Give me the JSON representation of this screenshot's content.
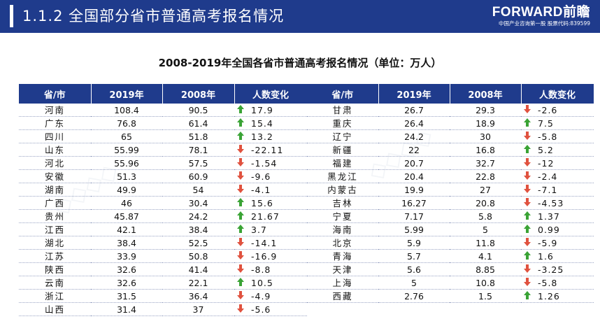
{
  "header": {
    "title": "1.1.2 全国部分省市普通高考报名情况",
    "logo_main": "FORWARD前瞻",
    "logo_sub": "中国产业咨询第一股 股票代码:839599"
  },
  "table_title": "2008-2019年全国各省市普通高考报名情况（单位：万人）",
  "columns": [
    "省/市",
    "2019年",
    "2008年",
    "人数变化"
  ],
  "colors": {
    "header_bg": "#1f3b8c",
    "up": "#3aa335",
    "down": "#e0523f"
  },
  "left_rows": [
    {
      "name": "河南",
      "y2019": "108.4",
      "y2008": "90.5",
      "change": "17.9",
      "dir": "up"
    },
    {
      "name": "广东",
      "y2019": "76.8",
      "y2008": "61.4",
      "change": "15.4",
      "dir": "up"
    },
    {
      "name": "四川",
      "y2019": "65",
      "y2008": "51.8",
      "change": "13.2",
      "dir": "up"
    },
    {
      "name": "山东",
      "y2019": "55.99",
      "y2008": "78.1",
      "change": "-22.11",
      "dir": "down"
    },
    {
      "name": "河北",
      "y2019": "55.96",
      "y2008": "57.5",
      "change": "-1.54",
      "dir": "down"
    },
    {
      "name": "安徽",
      "y2019": "51.3",
      "y2008": "60.9",
      "change": "-9.6",
      "dir": "down"
    },
    {
      "name": "湖南",
      "y2019": "49.9",
      "y2008": "54",
      "change": "-4.1",
      "dir": "down"
    },
    {
      "name": "广西",
      "y2019": "46",
      "y2008": "30.4",
      "change": "15.6",
      "dir": "up"
    },
    {
      "name": "贵州",
      "y2019": "45.87",
      "y2008": "24.2",
      "change": "21.67",
      "dir": "up"
    },
    {
      "name": "江西",
      "y2019": "42.1",
      "y2008": "38.4",
      "change": "3.7",
      "dir": "up"
    },
    {
      "name": "湖北",
      "y2019": "38.4",
      "y2008": "52.5",
      "change": "-14.1",
      "dir": "down"
    },
    {
      "name": "江苏",
      "y2019": "33.9",
      "y2008": "50.8",
      "change": "-16.9",
      "dir": "down"
    },
    {
      "name": "陕西",
      "y2019": "32.6",
      "y2008": "41.4",
      "change": "-8.8",
      "dir": "down"
    },
    {
      "name": "云南",
      "y2019": "32.6",
      "y2008": "22.1",
      "change": "10.5",
      "dir": "up"
    },
    {
      "name": "浙江",
      "y2019": "31.5",
      "y2008": "36.4",
      "change": "-4.9",
      "dir": "down"
    },
    {
      "name": "山西",
      "y2019": "31.4",
      "y2008": "37",
      "change": "-5.6",
      "dir": "down"
    }
  ],
  "right_rows": [
    {
      "name": "甘肃",
      "y2019": "26.7",
      "y2008": "29.3",
      "change": "-2.6",
      "dir": "down"
    },
    {
      "name": "重庆",
      "y2019": "26.4",
      "y2008": "18.9",
      "change": "7.5",
      "dir": "up"
    },
    {
      "name": "辽宁",
      "y2019": "24.2",
      "y2008": "30",
      "change": "-5.8",
      "dir": "down"
    },
    {
      "name": "新疆",
      "y2019": "22",
      "y2008": "16.8",
      "change": "5.2",
      "dir": "up"
    },
    {
      "name": "福建",
      "y2019": "20.7",
      "y2008": "32.7",
      "change": "-12",
      "dir": "down"
    },
    {
      "name": "黑龙江",
      "y2019": "20.4",
      "y2008": "22.8",
      "change": "-2.4",
      "dir": "down"
    },
    {
      "name": "内蒙古",
      "y2019": "19.9",
      "y2008": "27",
      "change": "-7.1",
      "dir": "down"
    },
    {
      "name": "吉林",
      "y2019": "16.27",
      "y2008": "20.8",
      "change": "-4.53",
      "dir": "down"
    },
    {
      "name": "宁夏",
      "y2019": "7.17",
      "y2008": "5.8",
      "change": "1.37",
      "dir": "up"
    },
    {
      "name": "海南",
      "y2019": "5.99",
      "y2008": "5",
      "change": "0.99",
      "dir": "up"
    },
    {
      "name": "北京",
      "y2019": "5.9",
      "y2008": "11.8",
      "change": "-5.9",
      "dir": "down"
    },
    {
      "name": "青海",
      "y2019": "5.7",
      "y2008": "4.1",
      "change": "1.6",
      "dir": "up"
    },
    {
      "name": "天津",
      "y2019": "5.6",
      "y2008": "8.85",
      "change": "-3.25",
      "dir": "down"
    },
    {
      "name": "上海",
      "y2019": "5",
      "y2008": "10.8",
      "change": "-5.8",
      "dir": "down"
    },
    {
      "name": "西藏",
      "y2019": "2.76",
      "y2008": "1.5",
      "change": "1.26",
      "dir": "up"
    }
  ]
}
